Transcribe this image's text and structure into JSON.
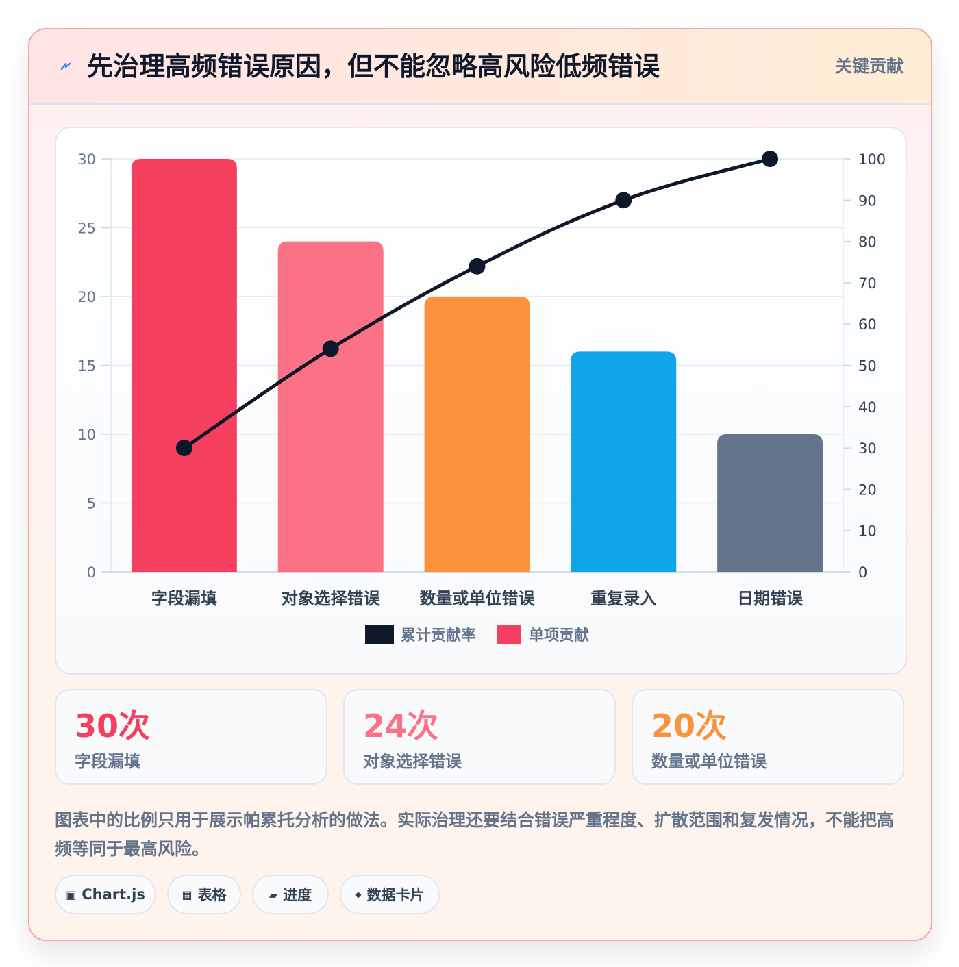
{
  "header": {
    "title": "先治理高频错误原因，但不能忽略高风险低频错误",
    "tag": "关键贡献",
    "icon": "lightning-icon"
  },
  "chart_data": {
    "type": "bar",
    "categories": [
      "字段漏填",
      "对象选择错误",
      "数量或单位错误",
      "重复录入",
      "日期错误"
    ],
    "series": [
      {
        "name": "单项贡献",
        "type": "bar",
        "axis": "left",
        "values": [
          30,
          24,
          20,
          16,
          10
        ],
        "colors": [
          "#f43f5e",
          "#fb7185",
          "#fb923c",
          "#0ea5e9",
          "#64748b"
        ]
      },
      {
        "name": "累计贡献率",
        "type": "line",
        "axis": "right",
        "values": [
          30,
          54,
          74,
          90,
          100
        ],
        "color": "#0f172a"
      }
    ],
    "ylim": [
      0,
      30
    ],
    "y_ticks": [
      0,
      5,
      10,
      15,
      20,
      25,
      30
    ],
    "y2lim": [
      0,
      100
    ],
    "y2_ticks": [
      0,
      10,
      20,
      30,
      40,
      50,
      60,
      70,
      80,
      90,
      100
    ],
    "legend_position": "bottom",
    "grid": true
  },
  "stats": [
    {
      "value": "30次",
      "label": "字段漏填",
      "color": "#f43f5e"
    },
    {
      "value": "24次",
      "label": "对象选择错误",
      "color": "#fb7185"
    },
    {
      "value": "20次",
      "label": "数量或单位错误",
      "color": "#fb923c"
    }
  ],
  "note": "图表中的比例只用于展示帕累托分析的做法。实际治理还要结合错误严重程度、扩散范围和复发情况，不能把高频等同于最高风险。",
  "pills": [
    {
      "icon": "▣",
      "label": "Chart.js"
    },
    {
      "icon": "▦",
      "label": "表格"
    },
    {
      "icon": "▰",
      "label": "进度"
    },
    {
      "icon": "◆",
      "label": "数据卡片"
    }
  ]
}
